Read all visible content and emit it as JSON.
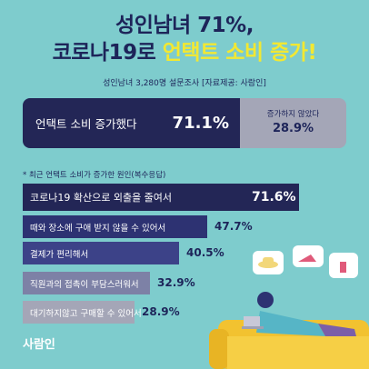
{
  "title": {
    "line1": "성인남녀 71%,",
    "line2_prefix": "코로나19로 ",
    "line2_highlight": "언택트 소비 증가!"
  },
  "subtitle": "성인남녀 3,280명 설문조사 [자료제공: 사람인]",
  "summary": {
    "yes_label": "언택트 소비 증가했다",
    "yes_value": "71.1%",
    "no_label": "증가하지 않았다",
    "no_value": "28.9%"
  },
  "reasons_title": "* 최근 언택트 소비가 증가한 원인(복수응답)",
  "chart_data": {
    "type": "bar",
    "categories": [
      "코로나19 확산으로 외출을 줄여서",
      "때와 장소에 구애 받지 않을 수 있어서",
      "결제가 편리해서",
      "직원과의 접촉이 부담스러워서",
      "대기하지않고 구매할 수 있어서"
    ],
    "values": [
      71.6,
      47.7,
      40.5,
      32.9,
      28.9
    ],
    "value_labels": [
      "71.6%",
      "47.7%",
      "40.5%",
      "32.9%",
      "28.9%"
    ],
    "colors": [
      "#232656",
      "#2d3272",
      "#3c4288",
      "#7d81a6",
      "#a4a6b7"
    ]
  },
  "logo": "사람인",
  "illustration": {
    "icons": [
      "sofa",
      "person-with-laptop",
      "speech-bubble-hat",
      "speech-bubble-heels",
      "speech-bubble-lipstick"
    ]
  }
}
